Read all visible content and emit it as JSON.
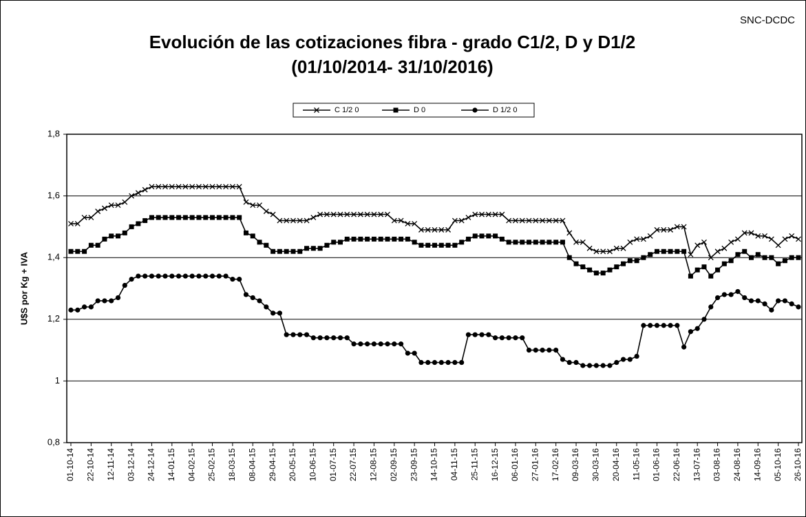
{
  "chart_data": {
    "type": "line",
    "title": "Evolución de las cotizaciones fibra - grado C1/2, D y D1/2",
    "subtitle": "(01/10/2014- 31/10/2016)",
    "source": "SNC-DCDC",
    "y_label": "U$S por Kg + IVA",
    "ylim": [
      0.8,
      1.8
    ],
    "yticks": [
      {
        "value": 0.8,
        "label": "0,8"
      },
      1,
      {
        "value": 1.2,
        "label": "1,2"
      },
      {
        "value": 1.4,
        "label": "1,4"
      },
      {
        "value": 1.6,
        "label": "1,6"
      },
      {
        "value": 1.8,
        "label": "1,8"
      }
    ],
    "grid": true,
    "legend": "top",
    "categories": [
      "01-10-14",
      null,
      null,
      "22-10-14",
      null,
      null,
      "12-11-14",
      null,
      null,
      "03-12-14",
      null,
      null,
      "24-12-14",
      null,
      null,
      "14-01-15",
      null,
      null,
      "04-02-15",
      null,
      null,
      "25-02-15",
      null,
      null,
      "18-03-15",
      null,
      null,
      "08-04-15",
      null,
      null,
      "29-04-15",
      null,
      null,
      "20-05-15",
      null,
      null,
      "10-06-15",
      null,
      null,
      "01-07-15",
      null,
      null,
      "22-07-15",
      null,
      null,
      "12-08-15",
      null,
      null,
      "02-09-15",
      null,
      null,
      "23-09-15",
      null,
      null,
      "14-10-15",
      null,
      null,
      "04-11-15",
      null,
      null,
      "25-11-15",
      null,
      null,
      "16-12-15",
      null,
      null,
      "06-01-16",
      null,
      null,
      "27-01-16",
      null,
      null,
      "17-02-16",
      null,
      null,
      "09-03-16",
      null,
      null,
      "30-03-16",
      null,
      null,
      "20-04-16",
      null,
      null,
      "11-05-16",
      null,
      null,
      "01-06-16",
      null,
      null,
      "22-06-16",
      null,
      null,
      "13-07-16",
      null,
      null,
      "03-08-16",
      null,
      null,
      "24-08-16",
      null,
      null,
      "14-09-16",
      null,
      null,
      "05-10-16",
      null,
      null,
      "26-10-16"
    ],
    "series": [
      {
        "name": "C 1/2 0",
        "color": "#000000",
        "marker": "x",
        "values": [
          1.51,
          1.51,
          1.53,
          1.53,
          1.55,
          1.56,
          1.57,
          1.57,
          1.58,
          1.6,
          1.61,
          1.62,
          1.63,
          1.63,
          1.63,
          1.63,
          1.63,
          1.63,
          1.63,
          1.63,
          1.63,
          1.63,
          1.63,
          1.63,
          1.63,
          1.63,
          1.58,
          1.57,
          1.57,
          1.55,
          1.54,
          1.52,
          1.52,
          1.52,
          1.52,
          1.52,
          1.53,
          1.54,
          1.54,
          1.54,
          1.54,
          1.54,
          1.54,
          1.54,
          1.54,
          1.54,
          1.54,
          1.54,
          1.52,
          1.52,
          1.51,
          1.51,
          1.49,
          1.49,
          1.49,
          1.49,
          1.49,
          1.52,
          1.52,
          1.53,
          1.54,
          1.54,
          1.54,
          1.54,
          1.54,
          1.52,
          1.52,
          1.52,
          1.52,
          1.52,
          1.52,
          1.52,
          1.52,
          1.52,
          1.48,
          1.45,
          1.45,
          1.43,
          1.42,
          1.42,
          1.42,
          1.43,
          1.43,
          1.45,
          1.46,
          1.46,
          1.47,
          1.49,
          1.49,
          1.49,
          1.5,
          1.5,
          1.41,
          1.44,
          1.45,
          1.4,
          1.42,
          1.43,
          1.45,
          1.46,
          1.48,
          1.48,
          1.47,
          1.47,
          1.46,
          1.44,
          1.46,
          1.47,
          1.46
        ]
      },
      {
        "name": "D 0",
        "color": "#000000",
        "marker": "square",
        "values": [
          1.42,
          1.42,
          1.42,
          1.44,
          1.44,
          1.46,
          1.47,
          1.47,
          1.48,
          1.5,
          1.51,
          1.52,
          1.53,
          1.53,
          1.53,
          1.53,
          1.53,
          1.53,
          1.53,
          1.53,
          1.53,
          1.53,
          1.53,
          1.53,
          1.53,
          1.53,
          1.48,
          1.47,
          1.45,
          1.44,
          1.42,
          1.42,
          1.42,
          1.42,
          1.42,
          1.43,
          1.43,
          1.43,
          1.44,
          1.45,
          1.45,
          1.46,
          1.46,
          1.46,
          1.46,
          1.46,
          1.46,
          1.46,
          1.46,
          1.46,
          1.46,
          1.45,
          1.44,
          1.44,
          1.44,
          1.44,
          1.44,
          1.44,
          1.45,
          1.46,
          1.47,
          1.47,
          1.47,
          1.47,
          1.46,
          1.45,
          1.45,
          1.45,
          1.45,
          1.45,
          1.45,
          1.45,
          1.45,
          1.45,
          1.4,
          1.38,
          1.37,
          1.36,
          1.35,
          1.35,
          1.36,
          1.37,
          1.38,
          1.39,
          1.39,
          1.4,
          1.41,
          1.42,
          1.42,
          1.42,
          1.42,
          1.42,
          1.34,
          1.36,
          1.37,
          1.34,
          1.36,
          1.38,
          1.39,
          1.41,
          1.42,
          1.4,
          1.41,
          1.4,
          1.4,
          1.38,
          1.39,
          1.4,
          1.4
        ]
      },
      {
        "name": "D 1/2 0",
        "color": "#000000",
        "marker": "circle",
        "values": [
          1.23,
          1.23,
          1.24,
          1.24,
          1.26,
          1.26,
          1.26,
          1.27,
          1.31,
          1.33,
          1.34,
          1.34,
          1.34,
          1.34,
          1.34,
          1.34,
          1.34,
          1.34,
          1.34,
          1.34,
          1.34,
          1.34,
          1.34,
          1.34,
          1.33,
          1.33,
          1.28,
          1.27,
          1.26,
          1.24,
          1.22,
          1.22,
          1.15,
          1.15,
          1.15,
          1.15,
          1.14,
          1.14,
          1.14,
          1.14,
          1.14,
          1.14,
          1.12,
          1.12,
          1.12,
          1.12,
          1.12,
          1.12,
          1.12,
          1.12,
          1.09,
          1.09,
          1.06,
          1.06,
          1.06,
          1.06,
          1.06,
          1.06,
          1.06,
          1.15,
          1.15,
          1.15,
          1.15,
          1.14,
          1.14,
          1.14,
          1.14,
          1.14,
          1.1,
          1.1,
          1.1,
          1.1,
          1.1,
          1.07,
          1.06,
          1.06,
          1.05,
          1.05,
          1.05,
          1.05,
          1.05,
          1.06,
          1.07,
          1.07,
          1.08,
          1.18,
          1.18,
          1.18,
          1.18,
          1.18,
          1.18,
          1.11,
          1.16,
          1.17,
          1.2,
          1.24,
          1.27,
          1.28,
          1.28,
          1.29,
          1.27,
          1.26,
          1.26,
          1.25,
          1.23,
          1.26,
          1.26,
          1.25,
          1.24
        ]
      }
    ]
  }
}
